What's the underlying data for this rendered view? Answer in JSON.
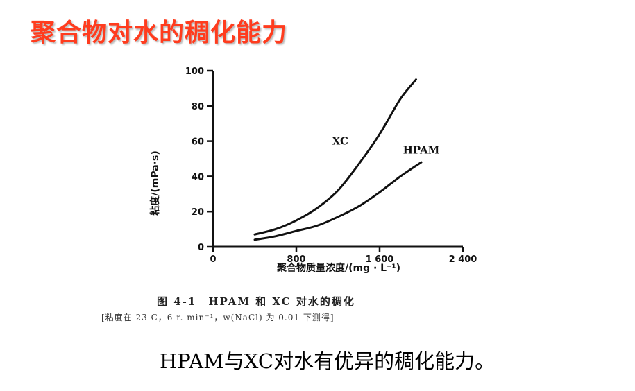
{
  "slide": {
    "title": "聚合物对水的稠化能力",
    "conclusion": "HPAM与XC对水有优异的稠化能力。"
  },
  "figure": {
    "caption": "图 4-1　HPAM 和 XC 对水的稠化",
    "note": "[粘度在 23 C，6 r. min⁻¹，w(NaCl) 为 0.01 下测得]"
  },
  "colors": {
    "title": "#ff3c1e",
    "ink": "#111111"
  },
  "chart_data": {
    "type": "line",
    "xlabel": "聚合物质量浓度/(mg · L⁻¹)",
    "ylabel": "粘度/(mPa·s)",
    "xlim": [
      0,
      2400
    ],
    "ylim": [
      0,
      100
    ],
    "x_ticks": [
      0,
      800,
      1600,
      2400
    ],
    "x_tick_labels": [
      "0",
      "800",
      "1 600",
      "2 400"
    ],
    "y_ticks": [
      0,
      20,
      40,
      60,
      80,
      100
    ],
    "y_tick_labels": [
      "0",
      "20",
      "40",
      "60",
      "80",
      "100"
    ],
    "grid": false,
    "series": [
      {
        "name": "XC",
        "x": [
          400,
          600,
          800,
          1000,
          1200,
          1400,
          1600,
          1800,
          1950
        ],
        "y": [
          7,
          10,
          15,
          22,
          32,
          47,
          64,
          84,
          95
        ]
      },
      {
        "name": "HPAM",
        "x": [
          400,
          600,
          800,
          1000,
          1200,
          1400,
          1600,
          1800,
          2000
        ],
        "y": [
          4,
          6,
          9,
          12,
          17,
          23,
          31,
          40,
          48
        ]
      }
    ]
  }
}
